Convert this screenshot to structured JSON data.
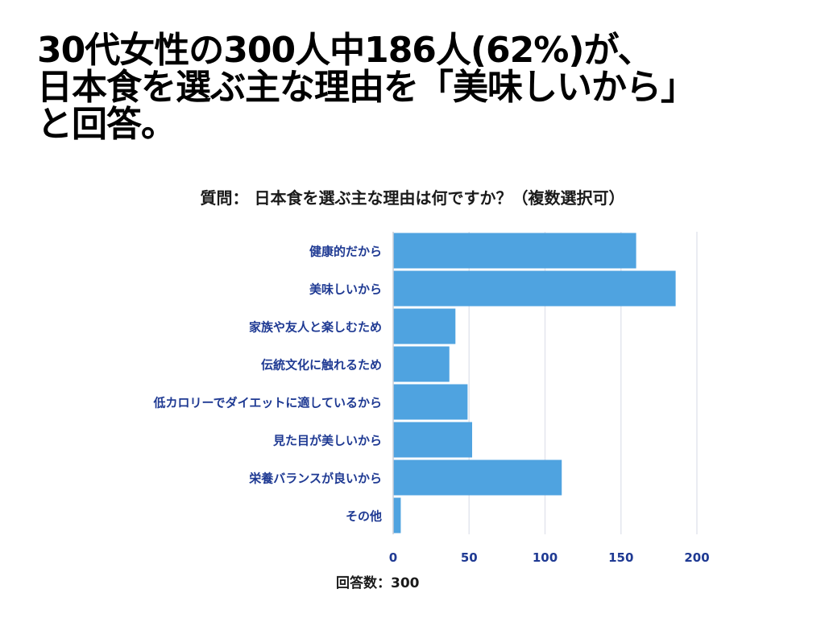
{
  "headline": {
    "line1": "30代女性の300人中186人(62%)が、",
    "line2": "日本食を選ぶ主な理由を「美味しいから」",
    "line3": "と回答。"
  },
  "question": "質問： 日本食を選ぶ主な理由は何ですか？（複数選択可）",
  "footer": "回答数：300",
  "colors": {
    "bar": "#4fa3e0",
    "label": "#1f3a93",
    "grid": "#e3e6ee",
    "text": "#1a1a1a"
  },
  "chart_data": {
    "type": "bar",
    "orientation": "horizontal",
    "categories": [
      "健康的だから",
      "美味しいから",
      "家族や友人と楽しむため",
      "伝統文化に触れるため",
      "低カロリーでダイエットに適しているから",
      "見た目が美しいから",
      "栄養バランスが良いから",
      "その他"
    ],
    "values": [
      160,
      186,
      41,
      37,
      49,
      52,
      111,
      5
    ],
    "xlim": [
      0,
      200
    ],
    "xticks": [
      0,
      50,
      100,
      150,
      200
    ],
    "title": "質問： 日本食を選ぶ主な理由は何ですか？（複数選択可）",
    "xlabel": "",
    "ylabel": "",
    "grid": true
  }
}
